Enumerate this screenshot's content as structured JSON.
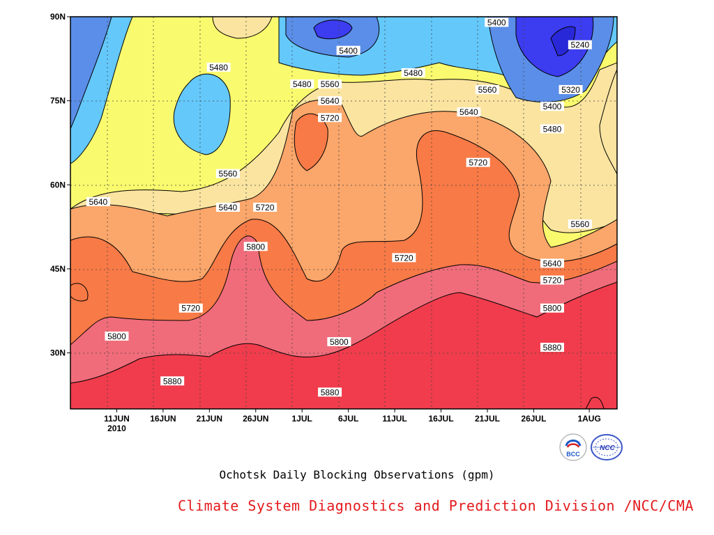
{
  "chart_data": {
    "type": "heatmap",
    "subtype": "filled-contour",
    "title": "Ochotsk Daily Blocking Observations (gpm)",
    "x_axis": {
      "ticks": [
        "11JUN",
        "16JUN",
        "21JUN",
        "26JUN",
        "1JUL",
        "6JUL",
        "11JUL",
        "16JUL",
        "21JUL",
        "26JUL",
        "1AUG"
      ],
      "year_label": "2010",
      "range": [
        "2010-06-06",
        "2010-08-04"
      ]
    },
    "y_axis": {
      "ticks": [
        "30N",
        "45N",
        "60N",
        "75N",
        "90N"
      ],
      "range": [
        20,
        90
      ],
      "units": "degrees latitude"
    },
    "grid": true,
    "contour_levels": [
      5240,
      5320,
      5400,
      5480,
      5560,
      5640,
      5720,
      5800,
      5880
    ],
    "fill_colors": {
      "below_5240": "#2828d8",
      "5240_5320": "#3c3cf0",
      "5320_5400": "#5a8ee8",
      "5400_5480": "#64c8fa",
      "5480_5560": "#fafa6e",
      "5560_5640": "#fae4a0",
      "5640_5720": "#fba66a",
      "5720_5800": "#f87a46",
      "5800_5880": "#f06c7a",
      "above_5880": "#f03c4c"
    },
    "contour_labels": [
      {
        "text": "5400",
        "date": "2010-07-22",
        "lat": 89
      },
      {
        "text": "5400",
        "date": "2010-07-06",
        "lat": 84
      },
      {
        "text": "5240",
        "date": "2010-07-31",
        "lat": 85
      },
      {
        "text": "5480",
        "date": "2010-06-22",
        "lat": 81
      },
      {
        "text": "5480",
        "date": "2010-07-01",
        "lat": 78
      },
      {
        "text": "5560",
        "date": "2010-07-04",
        "lat": 78
      },
      {
        "text": "5480",
        "date": "2010-07-13",
        "lat": 80
      },
      {
        "text": "5560",
        "date": "2010-07-21",
        "lat": 77
      },
      {
        "text": "5320",
        "date": "2010-07-30",
        "lat": 77
      },
      {
        "text": "5640",
        "date": "2010-07-04",
        "lat": 75
      },
      {
        "text": "5400",
        "date": "2010-07-28",
        "lat": 74
      },
      {
        "text": "5720",
        "date": "2010-07-04",
        "lat": 72
      },
      {
        "text": "5640",
        "date": "2010-07-19",
        "lat": 73
      },
      {
        "text": "5480",
        "date": "2010-07-28",
        "lat": 70
      },
      {
        "text": "5720",
        "date": "2010-07-20",
        "lat": 64
      },
      {
        "text": "5560",
        "date": "2010-06-23",
        "lat": 62
      },
      {
        "text": "5640",
        "date": "2010-06-09",
        "lat": 57
      },
      {
        "text": "5640",
        "date": "2010-06-23",
        "lat": 56
      },
      {
        "text": "5720",
        "date": "2010-06-27",
        "lat": 56
      },
      {
        "text": "5560",
        "date": "2010-07-31",
        "lat": 53
      },
      {
        "text": "5800",
        "date": "2010-06-26",
        "lat": 49
      },
      {
        "text": "5720",
        "date": "2010-07-12",
        "lat": 47
      },
      {
        "text": "5640",
        "date": "2010-07-28",
        "lat": 46
      },
      {
        "text": "5720",
        "date": "2010-07-28",
        "lat": 43
      },
      {
        "text": "5720",
        "date": "2010-06-19",
        "lat": 38
      },
      {
        "text": "5800",
        "date": "2010-07-28",
        "lat": 38
      },
      {
        "text": "5800",
        "date": "2010-06-11",
        "lat": 33
      },
      {
        "text": "5800",
        "date": "2010-07-05",
        "lat": 32
      },
      {
        "text": "5880",
        "date": "2010-07-28",
        "lat": 31
      },
      {
        "text": "5880",
        "date": "2010-06-17",
        "lat": 25
      },
      {
        "text": "5880",
        "date": "2010-07-04",
        "lat": 23
      }
    ]
  },
  "caption": "Ochotsk Daily Blocking Observations (gpm)",
  "credit": "Climate System Diagnostics and Prediction Division /NCC/CMA",
  "logos": {
    "bcc_text": "BCC",
    "ncc_text": "NCC"
  }
}
